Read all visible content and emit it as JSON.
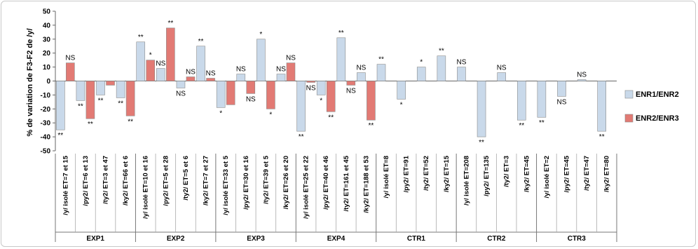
{
  "chart_data": {
    "type": "bar",
    "ylabel": "% de variation de F3-F2 de /y/",
    "ylim": [
      -50,
      50
    ],
    "yticks": [
      50,
      40,
      30,
      20,
      10,
      0,
      -10,
      -20,
      -30,
      -40,
      -50
    ],
    "legend_position": "right",
    "series": [
      {
        "name": "ENR1/ENR2",
        "color": "#c9d9ea"
      },
      {
        "name": "ENR2/ENR3",
        "color": "#e27a74"
      }
    ],
    "groups": [
      {
        "name": "EXP1",
        "categories": [
          {
            "label": "/y/ isolé  ET=7 et 15",
            "v1": -35,
            "a1": "**",
            "v2": 13,
            "a2": "NS"
          },
          {
            "label": "/py2/  ET=6 et 13",
            "v1": -14,
            "a1": "**",
            "v2": -27,
            "a2": "**"
          },
          {
            "label": "/ty2/  ET=3 et 47",
            "v1": -10,
            "a1": "**",
            "v2": -3,
            "a2": ""
          },
          {
            "label": "/ky2/  ET=66 et 6",
            "v1": -12,
            "a1": "**",
            "v2": -25,
            "a2": "**"
          }
        ]
      },
      {
        "name": "EXP2",
        "categories": [
          {
            "label": "/y/ isolé  ET=10 et 16",
            "v1": 28,
            "a1": "**",
            "v2": 15,
            "a2": "*"
          },
          {
            "label": "/py2/  ET=5 et 28",
            "v1": 9,
            "a1": "NS",
            "v2": 38,
            "a2": "**"
          },
          {
            "label": "/ty2/  ET=5 et 6",
            "v1": -5,
            "a1": "NS",
            "v2": 3,
            "a2": "NS"
          },
          {
            "label": "/ky2/  ET=7 et 27",
            "v1": 25,
            "a1": "**",
            "v2": 2,
            "a2": "NS"
          }
        ]
      },
      {
        "name": "EXP3",
        "categories": [
          {
            "label": "/y/ isolé  ET=33 et 5",
            "v1": -19,
            "a1": "*",
            "v2": -17,
            "a2": ""
          },
          {
            "label": "/py2/  ET=30 et 16",
            "v1": 5,
            "a1": "NS",
            "v2": -9,
            "a2": "NS"
          },
          {
            "label": "/ty2/  ET=39 et 5",
            "v1": 30,
            "a1": "*",
            "v2": -20,
            "a2": "*"
          },
          {
            "label": "/ky2/  ET=26 et 20",
            "v1": 5,
            "a1": "NS",
            "v2": 13,
            "a2": "NS"
          }
        ]
      },
      {
        "name": "EXP4",
        "categories": [
          {
            "label": "/y/ isolé  ET=25 et 22",
            "v1": -36,
            "a1": "**",
            "v2": -1,
            "a2": "NS"
          },
          {
            "label": "/py2/  ET=40 et 46",
            "v1": -10,
            "a1": "*",
            "v2": -22,
            "a2": "**"
          },
          {
            "label": "/ty2/  ET=161 et 45",
            "v1": 31,
            "a1": "**",
            "v2": -3,
            "a2": "NS"
          },
          {
            "label": "/ky2/  ET=188 et 53",
            "v1": 6,
            "a1": "NS",
            "v2": -28,
            "a2": "**"
          }
        ]
      },
      {
        "name": "CTR1",
        "categories": [
          {
            "label": "/y/ isolé  ET=8",
            "v1": 12,
            "a1": "**",
            "v2": null,
            "a2": ""
          },
          {
            "label": "/py2/  ET=91",
            "v1": -13,
            "a1": "*",
            "v2": null,
            "a2": ""
          },
          {
            "label": "/ty2/  ET=52",
            "v1": 10,
            "a1": "*",
            "v2": null,
            "a2": ""
          },
          {
            "label": "/ky2/  ET=15",
            "v1": 18,
            "a1": "**",
            "v2": null,
            "a2": ""
          }
        ]
      },
      {
        "name": "CTR2",
        "categories": [
          {
            "label": "/y/ isolé  ET=208",
            "v1": 10,
            "a1": "NS",
            "v2": null,
            "a2": ""
          },
          {
            "label": "/py2/  ET=135",
            "v1": -40,
            "a1": "**",
            "v2": null,
            "a2": ""
          },
          {
            "label": "/ty2/  ET=3",
            "v1": 6,
            "a1": "NS",
            "v2": null,
            "a2": ""
          },
          {
            "label": "/ky2/  ET=45",
            "v1": -28,
            "a1": "**",
            "v2": null,
            "a2": ""
          }
        ]
      },
      {
        "name": "CTR3",
        "categories": [
          {
            "label": "/y/ isolé  ET=2",
            "v1": -26,
            "a1": "**",
            "v2": null,
            "a2": ""
          },
          {
            "label": "/py2/  ET=45",
            "v1": -11,
            "a1": "NS",
            "v2": null,
            "a2": ""
          },
          {
            "label": "/ty2/  ET=47",
            "v1": 1,
            "a1": "NS",
            "v2": null,
            "a2": ""
          },
          {
            "label": "/ky2/  ET=80",
            "v1": -36,
            "a1": "**",
            "v2": null,
            "a2": ""
          }
        ]
      }
    ]
  }
}
